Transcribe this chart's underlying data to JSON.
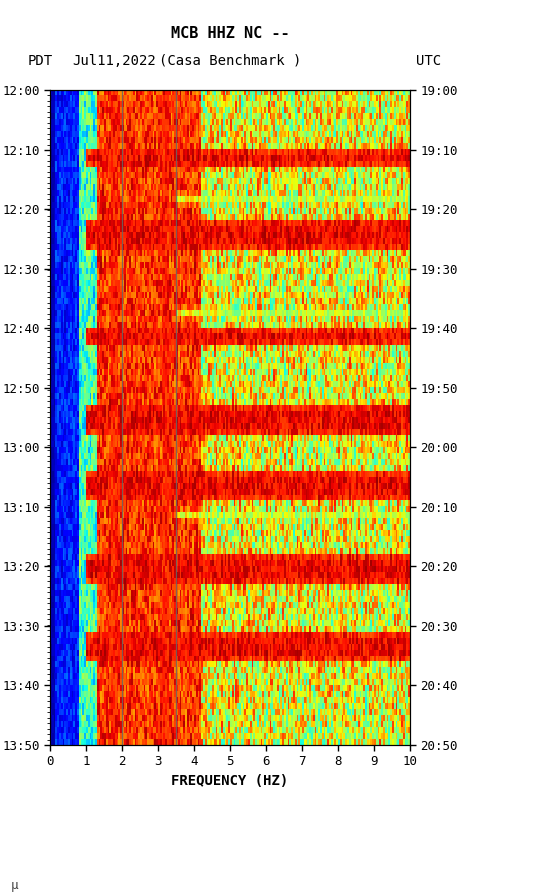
{
  "title_line1": "MCB HHZ NC --",
  "title_line2": "(Casa Benchmark )",
  "left_label": "PDT",
  "date_label": "Jul11,2022",
  "right_label": "UTC",
  "xlabel": "FREQUENCY (HZ)",
  "freq_min": 0,
  "freq_max": 10,
  "ytick_pdt": [
    "12:00",
    "12:10",
    "12:20",
    "12:30",
    "12:40",
    "12:50",
    "13:00",
    "13:10",
    "13:20",
    "13:30",
    "13:40",
    "13:50"
  ],
  "ytick_utc": [
    "19:00",
    "19:10",
    "19:20",
    "19:30",
    "19:40",
    "19:50",
    "20:00",
    "20:10",
    "20:20",
    "20:30",
    "20:40",
    "20:50"
  ],
  "xticks": [
    0,
    1,
    2,
    3,
    4,
    5,
    6,
    7,
    8,
    9,
    10
  ],
  "fig_width": 5.52,
  "fig_height": 8.93,
  "bg_color": "white",
  "usgs_green": "#006633",
  "vline_positions": [
    2.0,
    3.5
  ],
  "vline_color": "#666666",
  "n_time": 110,
  "n_freq": 200,
  "seed": 12345
}
